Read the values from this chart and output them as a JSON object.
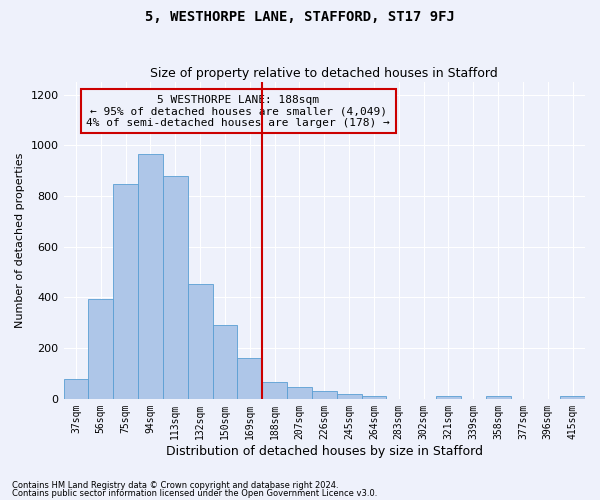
{
  "title": "5, WESTHORPE LANE, STAFFORD, ST17 9FJ",
  "subtitle": "Size of property relative to detached houses in Stafford",
  "xlabel": "Distribution of detached houses by size in Stafford",
  "ylabel": "Number of detached properties",
  "categories": [
    "37sqm",
    "56sqm",
    "75sqm",
    "94sqm",
    "113sqm",
    "132sqm",
    "150sqm",
    "169sqm",
    "188sqm",
    "207sqm",
    "226sqm",
    "245sqm",
    "264sqm",
    "283sqm",
    "302sqm",
    "321sqm",
    "339sqm",
    "358sqm",
    "377sqm",
    "396sqm",
    "415sqm"
  ],
  "values": [
    80,
    395,
    848,
    965,
    880,
    455,
    290,
    160,
    65,
    48,
    30,
    20,
    10,
    0,
    0,
    10,
    0,
    10,
    0,
    0,
    10
  ],
  "bar_color": "#aec6e8",
  "bar_edge_color": "#5a9fd4",
  "highlight_idx": 8,
  "highlight_line_color": "#cc0000",
  "annotation_line1": "5 WESTHORPE LANE: 188sqm",
  "annotation_line2": "← 95% of detached houses are smaller (4,049)",
  "annotation_line3": "4% of semi-detached houses are larger (178) →",
  "annotation_box_color": "#cc0000",
  "ylim": [
    0,
    1250
  ],
  "yticks": [
    0,
    200,
    400,
    600,
    800,
    1000,
    1200
  ],
  "footnote1": "Contains HM Land Registry data © Crown copyright and database right 2024.",
  "footnote2": "Contains public sector information licensed under the Open Government Licence v3.0.",
  "bg_color": "#eef1fb",
  "grid_color": "#ffffff",
  "title_fontsize": 10,
  "subtitle_fontsize": 9,
  "bar_width": 1.0
}
